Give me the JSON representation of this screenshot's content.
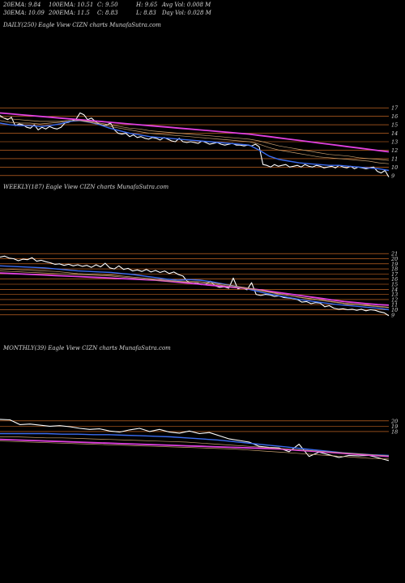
{
  "header": {
    "row1": [
      "20EMA: 9.84",
      "100EMA: 10.51",
      "C: 9.50",
      "H: 9.65",
      "Avg Vol: 0.008 M"
    ],
    "row2": [
      "30EMA: 10.09",
      "200EMA: 11.5",
      "C: 8.83",
      "L: 8.83",
      "Day Vol: 0.028 M"
    ]
  },
  "colors": {
    "background": "#000000",
    "price": "#ffffff",
    "ema_fast": "#3b6cf0",
    "ema_slow": "#e040e0",
    "moving_avgs": "#c8a070",
    "grid": "#e8782a",
    "text": "#d8d8d8"
  },
  "chart_data": [
    {
      "type": "line",
      "title": "DAILY(250) Eagle  View  CIZN  charts MunafaSutra.com",
      "y_ticks": [
        17,
        16,
        15,
        14,
        13,
        12,
        11,
        10,
        9
      ],
      "ylim": [
        8.5,
        17.5
      ],
      "grid": true,
      "series": [
        {
          "role": "price",
          "values": [
            16.1,
            15.8,
            15.6,
            15.9,
            14.9,
            15.1,
            15.0,
            14.7,
            14.6,
            15.0,
            14.4,
            14.7,
            14.5,
            14.8,
            14.6,
            14.5,
            14.7,
            15.2,
            15.3,
            15.5,
            15.7,
            16.4,
            16.2,
            15.6,
            15.8,
            15.4,
            15.1,
            14.9,
            15.0,
            15.2,
            14.4,
            14.0,
            13.9,
            14.0,
            13.6,
            13.8,
            13.5,
            13.6,
            13.4,
            13.3,
            13.5,
            13.4,
            13.2,
            13.5,
            13.3,
            13.1,
            13.0,
            13.4,
            13.0,
            12.9,
            13.0,
            12.9,
            12.8,
            13.1,
            12.9,
            12.7,
            12.8,
            12.9,
            12.7,
            12.6,
            12.7,
            12.8,
            12.6,
            12.6,
            12.5,
            12.6,
            12.5,
            12.7,
            12.4,
            10.3,
            10.2,
            10.0,
            10.3,
            10.1,
            10.2,
            10.3,
            10.0,
            10.1,
            10.2,
            10.0,
            10.3,
            10.1,
            10.0,
            10.2,
            10.1,
            9.9,
            10.0,
            10.1,
            9.9,
            10.2,
            10.0,
            9.9,
            10.1,
            9.8,
            10.0,
            9.9,
            9.8,
            9.9,
            10.0,
            9.5,
            9.3,
            9.6,
            8.83
          ]
        },
        {
          "role": "ema-fast",
          "values": [
            15.2,
            15.0,
            14.9,
            14.9,
            14.8,
            14.9,
            15.1,
            15.4,
            15.5,
            15.3,
            15.0,
            14.6,
            14.3,
            14.0,
            13.8,
            13.6,
            13.5,
            13.4,
            13.3,
            13.2,
            13.1,
            13.0,
            12.9,
            12.8,
            12.7,
            12.6,
            12.0,
            11.3,
            10.9,
            10.7,
            10.5,
            10.4,
            10.3,
            10.2,
            10.2,
            10.1,
            10.0,
            9.9,
            9.8,
            9.6
          ]
        },
        {
          "role": "ema-slow",
          "values": [
            16.4,
            16.3,
            16.2,
            16.1,
            16.0,
            15.9,
            15.8,
            15.7,
            15.6,
            15.5,
            15.4,
            15.3,
            15.2,
            15.1,
            15.0,
            14.9,
            14.8,
            14.7,
            14.6,
            14.5,
            14.4,
            14.3,
            14.2,
            14.1,
            14.0,
            13.9,
            13.75,
            13.6,
            13.45,
            13.3,
            13.15,
            13.0,
            12.85,
            12.7,
            12.55,
            12.4,
            12.25,
            12.1,
            11.95,
            11.8
          ]
        },
        {
          "role": "ma",
          "values": [
            15.5,
            15.3,
            15.2,
            15.2,
            15.1,
            15.2,
            15.3,
            15.5,
            15.5,
            15.3,
            15.1,
            14.8,
            14.6,
            14.4,
            14.2,
            14.0,
            13.9,
            13.8,
            13.7,
            13.6,
            13.5,
            13.4,
            13.3,
            13.2,
            13.1,
            13.0,
            12.7,
            12.3,
            12.0,
            11.8,
            11.6,
            11.4,
            11.2,
            11.1,
            11.0,
            10.9,
            10.8,
            10.7,
            10.5,
            10.4
          ]
        },
        {
          "role": "ma",
          "values": [
            15.9,
            15.7,
            15.6,
            15.5,
            15.4,
            15.4,
            15.4,
            15.5,
            15.5,
            15.4,
            15.2,
            15.0,
            14.8,
            14.6,
            14.5,
            14.3,
            14.2,
            14.1,
            14.0,
            13.9,
            13.8,
            13.7,
            13.6,
            13.5,
            13.4,
            13.3,
            13.1,
            12.8,
            12.5,
            12.3,
            12.1,
            11.9,
            11.7,
            11.5,
            11.4,
            11.3,
            11.1,
            11.0,
            10.9,
            10.8
          ]
        }
      ]
    },
    {
      "type": "line",
      "title": "WEEKLY(187) Eagle  View  CIZN  charts MunafaSutra.com",
      "y_ticks": [
        21,
        20,
        19,
        18,
        17,
        16,
        15,
        14,
        13,
        12,
        11,
        10,
        9
      ],
      "ylim": [
        8.5,
        21.5
      ],
      "grid": true,
      "series": [
        {
          "role": "price",
          "values": [
            20.3,
            20.5,
            20.1,
            20.0,
            19.6,
            19.9,
            19.8,
            20.2,
            19.5,
            19.7,
            19.4,
            19.2,
            18.9,
            19.0,
            18.7,
            18.9,
            18.6,
            18.8,
            18.5,
            18.7,
            18.3,
            18.8,
            18.4,
            19.1,
            18.2,
            18.0,
            18.6,
            17.9,
            18.1,
            17.6,
            17.8,
            17.5,
            17.9,
            17.4,
            17.7,
            17.3,
            17.6,
            17.1,
            17.4,
            16.9,
            16.6,
            15.5,
            15.1,
            15.3,
            14.9,
            15.0,
            15.6,
            14.7,
            14.4,
            14.5,
            14.2,
            16.2,
            14.1,
            14.3,
            13.9,
            15.3,
            13.0,
            12.8,
            13.0,
            12.9,
            12.6,
            12.7,
            12.4,
            12.3,
            12.2,
            12.0,
            11.5,
            11.6,
            11.2,
            11.4,
            11.3,
            10.6,
            10.8,
            10.3,
            10.1,
            10.2,
            10.0,
            10.1,
            9.9,
            10.1,
            9.8,
            10.0,
            9.9,
            9.6,
            9.4,
            8.83
          ]
        },
        {
          "role": "ema-fast",
          "values": [
            18.6,
            18.5,
            18.4,
            18.3,
            18.2,
            18.0,
            17.8,
            17.6,
            17.5,
            17.4,
            17.3,
            17.1,
            16.9,
            16.6,
            16.3,
            16.0,
            15.8,
            15.9,
            15.8,
            15.5,
            15.1,
            14.7,
            14.2,
            13.7,
            13.2,
            12.8,
            12.4,
            12.0,
            11.7,
            11.4,
            11.1,
            10.9,
            10.7,
            10.5,
            10.3,
            10.0
          ]
        },
        {
          "role": "ema-slow",
          "values": [
            17.2,
            17.1,
            17.0,
            16.9,
            16.8,
            16.7,
            16.6,
            16.5,
            16.4,
            16.3,
            16.2,
            16.1,
            16.0,
            15.9,
            15.8,
            15.6,
            15.4,
            15.2,
            15.0,
            14.8,
            14.6,
            14.4,
            14.2,
            14.0,
            13.7,
            13.4,
            13.1,
            12.8,
            12.5,
            12.2,
            11.9,
            11.6,
            11.4,
            11.2,
            11.0,
            10.9
          ]
        },
        {
          "role": "ma",
          "values": [
            18.0,
            17.9,
            17.8,
            17.7,
            17.6,
            17.5,
            17.3,
            17.1,
            17.0,
            16.9,
            16.8,
            16.6,
            16.4,
            16.2,
            16.0,
            15.8,
            15.6,
            15.6,
            15.5,
            15.3,
            15.0,
            14.7,
            14.4,
            14.0,
            13.6,
            13.2,
            12.8,
            12.4,
            12.1,
            11.8,
            11.5,
            11.2,
            11.0,
            10.8,
            10.6,
            10.4
          ]
        },
        {
          "role": "ma",
          "values": [
            17.6,
            17.5,
            17.4,
            17.3,
            17.2,
            17.1,
            17.0,
            16.9,
            16.8,
            16.7,
            16.6,
            16.4,
            16.2,
            16.0,
            15.8,
            15.6,
            15.5,
            15.4,
            15.3,
            15.1,
            14.8,
            14.5,
            14.2,
            13.9,
            13.5,
            13.1,
            12.8,
            12.5,
            12.2,
            11.9,
            11.6,
            11.3,
            11.1,
            10.9,
            10.7,
            10.5
          ]
        }
      ]
    },
    {
      "type": "line",
      "title": "MONTHLY(39) Eagle  View  CIZN  charts MunafaSutra.com",
      "y_ticks": [
        20,
        19,
        18
      ],
      "ylim": [
        10.5,
        21.5
      ],
      "grid": true,
      "series": [
        {
          "role": "price",
          "values": [
            20.3,
            20.2,
            19.3,
            19.4,
            19.2,
            19.0,
            19.1,
            18.9,
            18.6,
            18.4,
            18.5,
            18.1,
            17.9,
            18.3,
            18.6,
            18.0,
            18.4,
            17.9,
            17.7,
            18.1,
            17.6,
            17.8,
            17.2,
            16.6,
            16.3,
            16.0,
            15.2,
            15.0,
            14.9,
            14.2,
            15.6,
            13.3,
            14.1,
            13.6,
            13.1,
            13.5,
            13.4,
            13.5,
            13.0,
            12.5
          ]
        },
        {
          "role": "ema-fast",
          "values": [
            17.6,
            17.6,
            17.6,
            17.6,
            17.5,
            17.5,
            17.4,
            17.4,
            17.3,
            17.2,
            17.1,
            17.0,
            16.8,
            16.6,
            16.4,
            16.1,
            15.8,
            15.5,
            15.2,
            14.9,
            14.6,
            14.3,
            14.0,
            13.8,
            13.6,
            13.5
          ]
        },
        {
          "role": "ema-slow",
          "values": [
            16.5,
            16.4,
            16.3,
            16.2,
            16.1,
            16.0,
            15.9,
            15.8,
            15.7,
            15.6,
            15.5,
            15.4,
            15.3,
            15.2,
            15.1,
            15.0,
            14.9,
            14.8,
            14.7,
            14.5,
            14.3,
            14.1,
            13.9,
            13.7,
            13.5,
            13.3
          ]
        },
        {
          "role": "ma",
          "values": [
            17.0,
            17.0,
            16.9,
            16.8,
            16.8,
            16.7,
            16.6,
            16.5,
            16.4,
            16.3,
            16.2,
            16.1,
            16.0,
            15.8,
            15.6,
            15.4,
            15.2,
            15.0,
            14.8,
            14.6,
            14.4,
            14.2,
            14.0,
            13.8,
            13.6,
            13.4
          ]
        },
        {
          "role": "ma",
          "values": [
            16.2,
            16.1,
            16.0,
            15.9,
            15.8,
            15.7,
            15.6,
            15.5,
            15.4,
            15.3,
            15.2,
            15.1,
            15.0,
            14.9,
            14.8,
            14.7,
            14.5,
            14.3,
            14.1,
            13.9,
            13.7,
            13.5,
            13.3,
            13.1,
            12.9,
            12.8
          ]
        }
      ]
    }
  ]
}
